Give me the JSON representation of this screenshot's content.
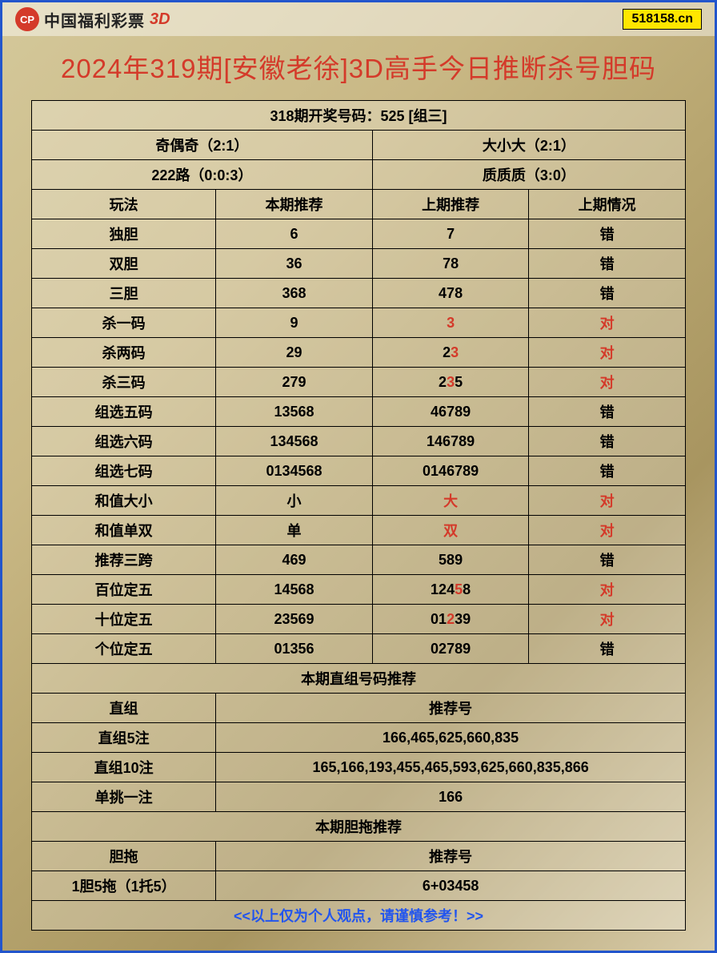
{
  "header": {
    "logo_text": "中国福利彩票",
    "logo_suffix": "3D",
    "badge": "518158.cn"
  },
  "title": "2024年319期[安徽老徐]3D高手今日推断杀号胆码",
  "draw_result": "318期开奖号码：525 [组三]",
  "summary": {
    "r1c1": "奇偶奇（2:1）",
    "r1c2": "大小大（2:1）",
    "r2c1": "222路（0:0:3）",
    "r2c2": "质质质（3:0）"
  },
  "columns": {
    "c1": "玩法",
    "c2": "本期推荐",
    "c3": "上期推荐",
    "c4": "上期情况"
  },
  "rows": [
    {
      "name": "独胆",
      "curr": "6",
      "prev": "7",
      "result": "错",
      "red": false,
      "prev_red": ""
    },
    {
      "name": "双胆",
      "curr": "36",
      "prev": "78",
      "result": "错",
      "red": false,
      "prev_red": ""
    },
    {
      "name": "三胆",
      "curr": "368",
      "prev": "478",
      "result": "错",
      "red": false,
      "prev_red": ""
    },
    {
      "name": "杀一码",
      "curr": "9",
      "prev": "3",
      "result": "对",
      "red": true,
      "prev_red": "3"
    },
    {
      "name": "杀两码",
      "curr": "29",
      "prev": "23",
      "result": "对",
      "red": true,
      "prev_red": "3"
    },
    {
      "name": "杀三码",
      "curr": "279",
      "prev": "235",
      "result": "对",
      "red": true,
      "prev_red": "3"
    },
    {
      "name": "组选五码",
      "curr": "13568",
      "prev": "46789",
      "result": "错",
      "red": false,
      "prev_red": ""
    },
    {
      "name": "组选六码",
      "curr": "134568",
      "prev": "146789",
      "result": "错",
      "red": false,
      "prev_red": ""
    },
    {
      "name": "组选七码",
      "curr": "0134568",
      "prev": "0146789",
      "result": "错",
      "red": false,
      "prev_red": ""
    },
    {
      "name": "和值大小",
      "curr": "小",
      "prev": "大",
      "result": "对",
      "red": true,
      "prev_red": "大"
    },
    {
      "name": "和值单双",
      "curr": "单",
      "prev": "双",
      "result": "对",
      "red": true,
      "prev_red": "双"
    },
    {
      "name": "推荐三跨",
      "curr": "469",
      "prev": "589",
      "result": "错",
      "red": false,
      "prev_red": ""
    },
    {
      "name": "百位定五",
      "curr": "14568",
      "prev": "12458",
      "result": "对",
      "red": true,
      "prev_red": "5"
    },
    {
      "name": "十位定五",
      "curr": "23569",
      "prev": "01239",
      "result": "对",
      "red": true,
      "prev_red": "2"
    },
    {
      "name": "个位定五",
      "curr": "01356",
      "prev": "02789",
      "result": "错",
      "red": false,
      "prev_red": ""
    }
  ],
  "zhizu": {
    "header": "本期直组号码推荐",
    "col1": "直组",
    "col2": "推荐号",
    "rows": [
      {
        "name": "直组5注",
        "val": "166,465,625,660,835"
      },
      {
        "name": "直组10注",
        "val": "165,166,193,455,465,593,625,660,835,866"
      },
      {
        "name": "单挑一注",
        "val": "166"
      }
    ]
  },
  "dantuo": {
    "header": "本期胆拖推荐",
    "col1": "胆拖",
    "col2": "推荐号",
    "rows": [
      {
        "name": "1胆5拖（1托5）",
        "val": "6+03458"
      }
    ]
  },
  "disclaimer": "<<以上仅为个人观点，请谨慎参考！>>",
  "colors": {
    "border": "#2255cc",
    "accent_red": "#d43a2a",
    "accent_blue": "#2255ee",
    "badge_bg": "#ffe600",
    "cell_border": "#000000"
  }
}
